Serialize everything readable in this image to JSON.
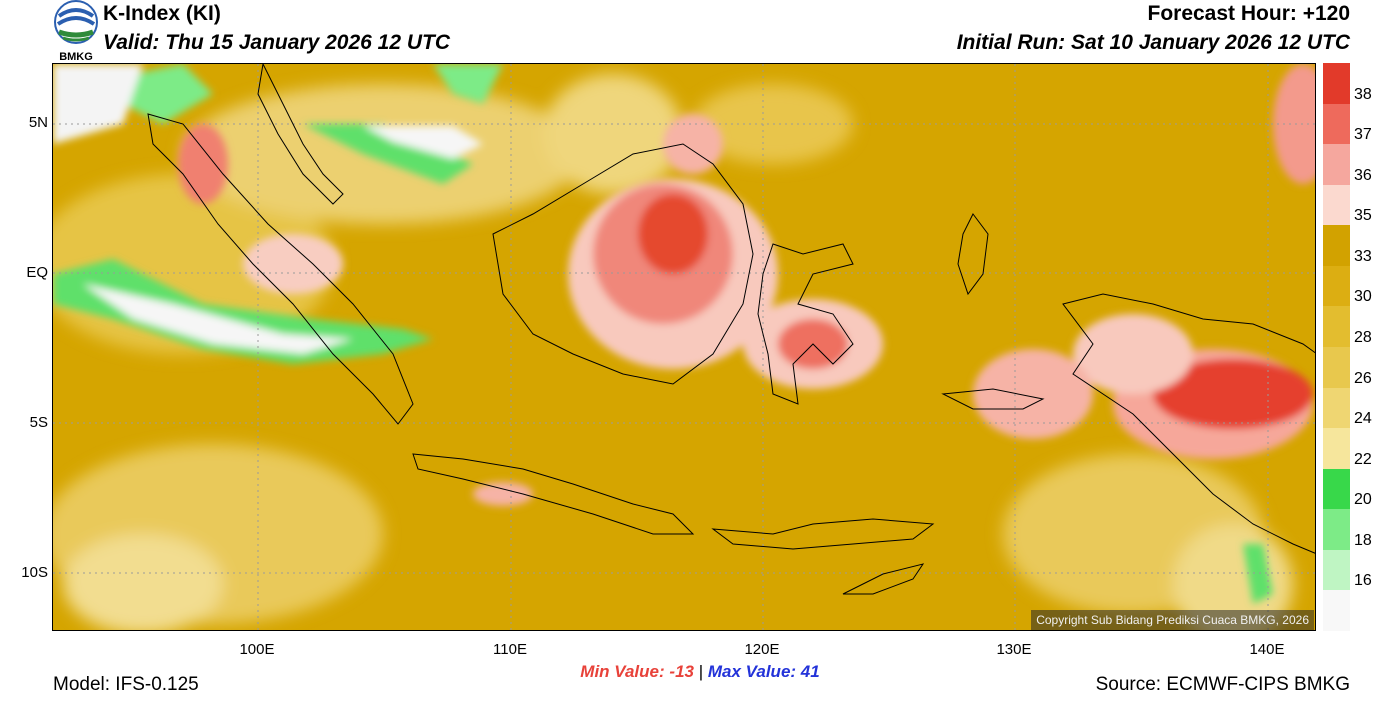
{
  "header": {
    "title": "K-Index (KI)",
    "valid": "Valid: Thu 15 January 2026 12 UTC",
    "forecast_hour": "Forecast Hour: +120",
    "initial_run": "Initial Run: Sat 10 January 2026 12 UTC",
    "logo_text": "BMKG"
  },
  "map": {
    "lat_labels": [
      "5N",
      "EQ",
      "5S",
      "10S"
    ],
    "lon_labels": [
      "100E",
      "110E",
      "120E",
      "130E",
      "140E"
    ],
    "copyright": "Copyright Sub Bidang Prediksi Cuaca BMKG, 2026"
  },
  "colorbar": {
    "labels": [
      "38",
      "37",
      "36",
      "35",
      "33",
      "30",
      "28",
      "26",
      "24",
      "22",
      "20",
      "18",
      "16"
    ],
    "colors": [
      "#e23a2a",
      "#ee6a5c",
      "#f5a79e",
      "#fbd9cf",
      "#d2a200",
      "#dcae12",
      "#e3bd2f",
      "#e8c84d",
      "#efd672",
      "#f6e69c",
      "#38d84a",
      "#7deb87",
      "#bff5c3",
      "#f8f8f8"
    ]
  },
  "stats": {
    "min_label": "Min Value:",
    "min_value": "-13",
    "separator": "|",
    "max_label": "Max Value:",
    "max_value": "41"
  },
  "footer": {
    "model": "Model: IFS-0.125",
    "source": "Source: ECMWF-CIPS BMKG"
  }
}
